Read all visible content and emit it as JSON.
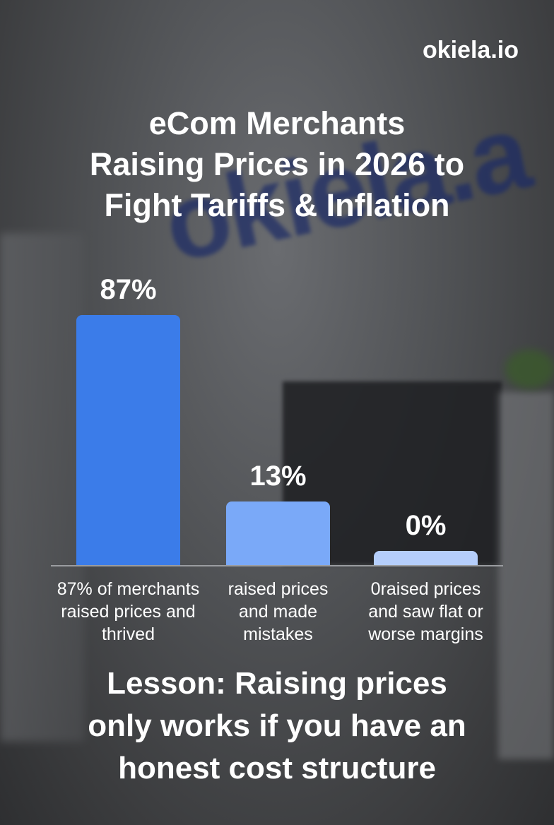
{
  "brand": "okiela.io",
  "background_logo": "okiela.a",
  "title_lines": [
    "eCom Merchants",
    "Raising Prices in 2026 to",
    "Fight Tariffs & Inflation"
  ],
  "lesson_lines": [
    "Lesson: Raising prices",
    "only works if you have an",
    "honest cost structure"
  ],
  "chart_data": {
    "type": "bar",
    "title": "eCom Merchants Raising Prices in 2026 to Fight Tariffs & Inflation",
    "categories": [
      "87% of merchants\nraised prices and\nthrived",
      "raised prices\nand made\nmistakes",
      "0raised prices\nand saw flat or\nworse margins"
    ],
    "values": [
      87,
      13,
      0
    ],
    "data_labels": [
      "87%",
      "13%",
      "0%"
    ],
    "colors": [
      "#3b7ce9",
      "#7aa9f8",
      "#b5cefb"
    ],
    "xlabel": "",
    "ylabel": "",
    "ylim": [
      0,
      100
    ],
    "grid": false
  }
}
